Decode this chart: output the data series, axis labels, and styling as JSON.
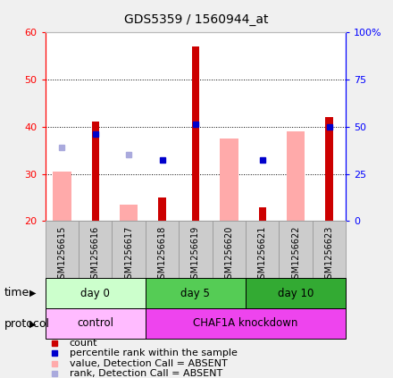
{
  "title": "GDS5359 / 1560944_at",
  "samples": [
    "GSM1256615",
    "GSM1256616",
    "GSM1256617",
    "GSM1256618",
    "GSM1256619",
    "GSM1256620",
    "GSM1256621",
    "GSM1256622",
    "GSM1256623"
  ],
  "count_values": [
    null,
    41,
    null,
    25,
    57,
    null,
    23,
    null,
    42
  ],
  "percentile_rank": [
    null,
    38.5,
    null,
    33,
    40.5,
    null,
    33,
    null,
    40
  ],
  "absent_value": [
    30.5,
    null,
    23.5,
    null,
    null,
    37.5,
    null,
    39,
    null
  ],
  "absent_rank": [
    35.5,
    null,
    34,
    null,
    null,
    null,
    null,
    null,
    null
  ],
  "ylim_left": [
    20,
    60
  ],
  "ylim_right": [
    0,
    100
  ],
  "yticks_left": [
    20,
    30,
    40,
    50,
    60
  ],
  "yticks_right": [
    0,
    25,
    50,
    75,
    100
  ],
  "ytick_labels_right": [
    "0",
    "25",
    "50",
    "75",
    "100%"
  ],
  "time_groups": [
    {
      "label": "day 0",
      "start": 0,
      "end": 3,
      "color": "#ccffcc"
    },
    {
      "label": "day 5",
      "start": 3,
      "end": 6,
      "color": "#55cc55"
    },
    {
      "label": "day 10",
      "start": 6,
      "end": 9,
      "color": "#33aa33"
    }
  ],
  "protocol_groups": [
    {
      "label": "control",
      "start": 0,
      "end": 3,
      "color": "#ffbbff"
    },
    {
      "label": "CHAF1A knockdown",
      "start": 3,
      "end": 9,
      "color": "#ee44ee"
    }
  ],
  "bar_color_count": "#cc0000",
  "bar_color_rank": "#0000cc",
  "bar_color_absent_value": "#ffaaaa",
  "bar_color_absent_rank": "#aaaadd",
  "fig_bg": "#f0f0f0",
  "ax_bg": "#ffffff",
  "sample_bg": "#cccccc",
  "grid_color": "#000000",
  "title_fontsize": 10,
  "tick_fontsize": 8,
  "sample_fontsize": 7,
  "legend_fontsize": 8,
  "label_fontsize": 9
}
